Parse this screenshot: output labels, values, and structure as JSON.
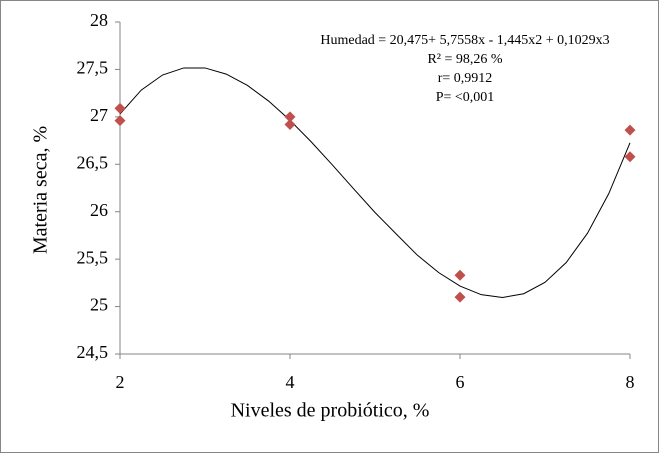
{
  "chart_data": {
    "type": "scatter",
    "xlabel": "Niveles de probiótico, %",
    "ylabel": "Materia seca, %",
    "annotations": [
      "Humedad = 20,475+ 5,7558x  - 1,445x2 + 0,1029x3",
      "R² = 98,26 %",
      "r= 0,9912",
      "P= <0,001"
    ],
    "xlim": [
      2,
      8
    ],
    "xticks": [
      2,
      4,
      6,
      8
    ],
    "ylim": [
      24.5,
      28
    ],
    "yticks": [
      {
        "value": 24.5,
        "label": "24,5"
      },
      25,
      {
        "value": 25.5,
        "label": "25,5"
      },
      26,
      {
        "value": 26.5,
        "label": "26,5"
      },
      27,
      {
        "value": 27.5,
        "label": "27,5"
      },
      28
    ],
    "series": [
      {
        "color": "#c0504d",
        "x": [
          2,
          2,
          4,
          4,
          6,
          6,
          8,
          8
        ],
        "values": [
          27.09,
          26.96,
          27.0,
          26.92,
          25.33,
          25.1,
          26.86,
          26.58
        ]
      }
    ],
    "trendline": {
      "color": "#000000",
      "x": [
        2,
        2.25,
        2.5,
        2.75,
        3,
        3.25,
        3.5,
        3.75,
        4,
        4.25,
        4.5,
        4.75,
        5,
        5.25,
        5.5,
        5.75,
        6,
        6.25,
        6.5,
        6.75,
        7,
        7.25,
        7.5,
        7.75,
        8
      ],
      "values": [
        27.0298,
        27.2823,
        27.4411,
        27.5156,
        27.5157,
        27.4509,
        27.3309,
        27.1653,
        26.9638,
        26.736,
        26.4916,
        26.2401,
        25.9915,
        25.7651,
        25.5406,
        25.3578,
        25.2162,
        25.1255,
        25.0954,
        25.1354,
        25.2553,
        25.4647,
        25.7732,
        26.1905,
        26.7262
      ]
    }
  }
}
